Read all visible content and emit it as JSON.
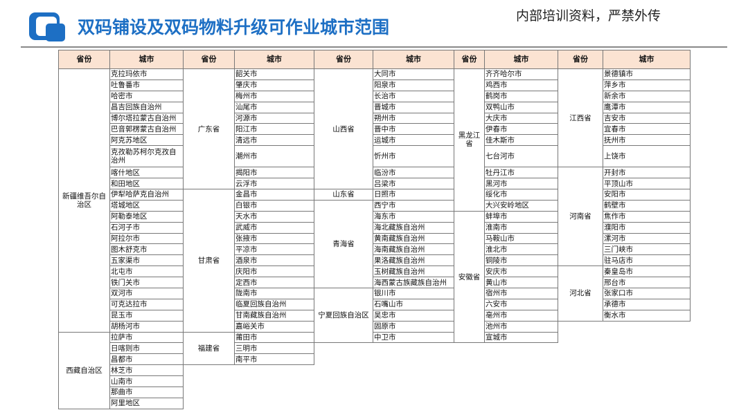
{
  "header": {
    "title": "双码铺设及双码物料升级可作业城市范围",
    "notice": "内部培训资料，严禁外传"
  },
  "table": {
    "headers": [
      "省份",
      "城市",
      "省份",
      "城市",
      "省份",
      "城市",
      "省份",
      "城市",
      "省份",
      "城市"
    ],
    "groups": [
      {
        "provinces": [
          {
            "name": "新疆维吾尔自治区",
            "cities": [
              "克拉玛依市",
              "吐鲁番市",
              "哈密市",
              "昌吉回族自治州",
              "博尔塔拉蒙古自治州",
              "巴音郭楞蒙古自治州",
              "阿克苏地区",
              "克孜勒苏柯尔克孜自治州",
              "喀什地区",
              "和田地区",
              "伊犁哈萨克自治州",
              "塔城地区",
              "阿勒泰地区",
              "石河子市",
              "阿拉尔市",
              "图木舒克市",
              "五家渠市",
              "北屯市",
              "铁门关市",
              "双河市",
              "可克达拉市",
              "昆玉市",
              "胡杨河市"
            ]
          },
          {
            "name": "西藏自治区",
            "cities": [
              "拉萨市",
              "日喀则市",
              "昌都市",
              "林芝市",
              "山南市",
              "那曲市",
              "阿里地区"
            ]
          }
        ]
      },
      {
        "provinces": [
          {
            "name": "广东省",
            "cities": [
              "韶关市",
              "肇庆市",
              "梅州市",
              "汕尾市",
              "河源市",
              "阳江市",
              "清远市",
              "潮州市",
              "揭阳市",
              "云浮市"
            ]
          },
          {
            "name": "甘肃省",
            "cities": [
              "金昌市",
              "白银市",
              "天水市",
              "武威市",
              "张掖市",
              "平凉市",
              "酒泉市",
              "庆阳市",
              "定西市",
              "陇南市",
              "临夏回族自治州",
              "甘南藏族自治州",
              "嘉峪关市"
            ]
          },
          {
            "name": "福建省",
            "cities": [
              "莆田市",
              "三明市",
              "南平市"
            ]
          }
        ]
      },
      {
        "provinces": [
          {
            "name": "山西省",
            "cities": [
              "大同市",
              "阳泉市",
              "长治市",
              "晋城市",
              "朔州市",
              "晋中市",
              "运城市",
              "忻州市",
              "临汾市",
              "吕梁市"
            ]
          },
          {
            "name": "山东省",
            "cities": [
              "日照市"
            ]
          },
          {
            "name": "青海省",
            "cities": [
              "西宁市",
              "海东市",
              "海北藏族自治州",
              "黄南藏族自治州",
              "海南藏族自治州",
              "果洛藏族自治州",
              "玉树藏族自治州",
              "海西蒙古族藏族自治州"
            ]
          },
          {
            "name": "宁夏回族自治区",
            "cities": [
              "银川市",
              "石嘴山市",
              "吴忠市",
              "固原市",
              "中卫市"
            ]
          }
        ]
      },
      {
        "provinces": [
          {
            "name": "黑龙江省",
            "cities": [
              "齐齐哈尔市",
              "鸡西市",
              "鹤岗市",
              "双鸭山市",
              "大庆市",
              "伊春市",
              "佳木斯市",
              "七台河市",
              "牡丹江市",
              "黑河市",
              "绥化市",
              "大兴安岭地区"
            ]
          },
          {
            "name": "安徽省",
            "cities": [
              "蚌埠市",
              "淮南市",
              "马鞍山市",
              "淮北市",
              "铜陵市",
              "安庆市",
              "黄山市",
              "宿州市",
              "六安市",
              "亳州市",
              "池州市",
              "宣城市"
            ]
          }
        ]
      },
      {
        "provinces": [
          {
            "name": "江西省",
            "cities": [
              "景德镇市",
              "萍乡市",
              "新余市",
              "鹰潭市",
              "吉安市",
              "宜春市",
              "抚州市",
              "上饶市"
            ]
          },
          {
            "name": "河南省",
            "cities": [
              "开封市",
              "平顶山市",
              "安阳市",
              "鹤壁市",
              "焦作市",
              "濮阳市",
              "漯河市",
              "三门峡市",
              "驻马店市"
            ]
          },
          {
            "name": "河北省",
            "cities": [
              "秦皇岛市",
              "邢台市",
              "张家口市",
              "承德市",
              "衡水市"
            ]
          }
        ]
      }
    ]
  }
}
